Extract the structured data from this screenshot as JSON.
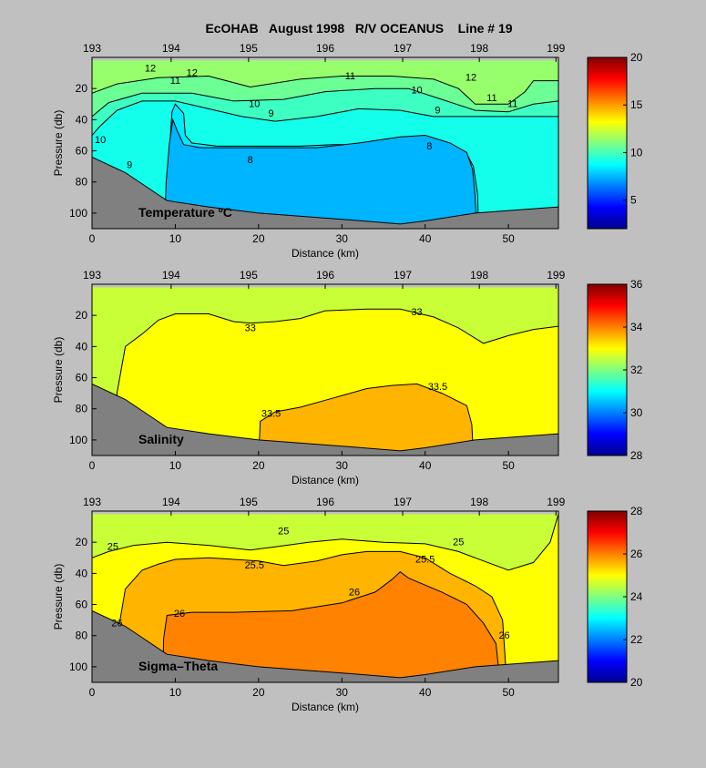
{
  "figure": {
    "title": "EcOHAB   August 1998   R/V OCEANUS    Line # 19"
  },
  "colors": {
    "background": "#c0c0c0",
    "bathymetry": "#808080",
    "contour_line": "#000000"
  },
  "chart_data": [
    {
      "type": "contour",
      "panel_label": "Temperature ºC",
      "xlabel": "Distance (km)",
      "ylabel": "Pressure (db)",
      "xlim": [
        0,
        56
      ],
      "ylim": [
        0,
        110
      ],
      "x_ticks": [
        "0",
        "10",
        "20",
        "30",
        "40",
        "50"
      ],
      "y_ticks": [
        "20",
        "40",
        "60",
        "80",
        "100"
      ],
      "station_ticks": [
        {
          "label": "193",
          "x": 0
        },
        {
          "label": "194",
          "x": 9.5
        },
        {
          "label": "195",
          "x": 18.8
        },
        {
          "label": "196",
          "x": 28
        },
        {
          "label": "197",
          "x": 37.3
        },
        {
          "label": "198",
          "x": 46.5
        },
        {
          "label": "199",
          "x": 55.7
        }
      ],
      "colorbar": {
        "range": [
          2,
          20
        ],
        "ticks": [
          "5",
          "10",
          "15",
          "20"
        ]
      },
      "contour_labels": [
        {
          "text": "12",
          "x": 7,
          "y": 9
        },
        {
          "text": "12",
          "x": 12,
          "y": 12
        },
        {
          "text": "11",
          "x": 10,
          "y": 17
        },
        {
          "text": "11",
          "x": 31,
          "y": 14
        },
        {
          "text": "10",
          "x": 19.5,
          "y": 32
        },
        {
          "text": "9",
          "x": 21.5,
          "y": 38
        },
        {
          "text": "10",
          "x": 39,
          "y": 23
        },
        {
          "text": "9",
          "x": 41.5,
          "y": 36
        },
        {
          "text": "12",
          "x": 45.5,
          "y": 15
        },
        {
          "text": "11",
          "x": 48,
          "y": 28
        },
        {
          "text": "11",
          "x": 50.5,
          "y": 32
        },
        {
          "text": "10",
          "x": 1,
          "y": 55
        },
        {
          "text": "9",
          "x": 4.5,
          "y": 71
        },
        {
          "text": "8",
          "x": 19,
          "y": 68
        },
        {
          "text": "8",
          "x": 40.5,
          "y": 59
        }
      ],
      "regions": [
        {
          "value": 12.5,
          "color": "#96ff6b",
          "boundary": [
            [
              0,
              2
            ],
            [
              56,
              2
            ],
            [
              56,
              110
            ],
            [
              0,
              110
            ]
          ]
        },
        {
          "value": 11.5,
          "color": "#6bff96",
          "boundary": [
            [
              0,
              23
            ],
            [
              3,
              17
            ],
            [
              8,
              13
            ],
            [
              14,
              12
            ],
            [
              19,
              19
            ],
            [
              25,
              14
            ],
            [
              30,
              12
            ],
            [
              36,
              12
            ],
            [
              41,
              14
            ],
            [
              44,
              20
            ],
            [
              46,
              30
            ],
            [
              50,
              30
            ],
            [
              52,
              22
            ],
            [
              53,
              15
            ],
            [
              55.5,
              15
            ],
            [
              56,
              15
            ],
            [
              56,
              110
            ],
            [
              0,
              110
            ]
          ]
        },
        {
          "value": 10.5,
          "color": "#3dffc2",
          "boundary": [
            [
              0,
              38
            ],
            [
              2,
              29
            ],
            [
              6,
              23
            ],
            [
              12,
              23
            ],
            [
              17,
              28
            ],
            [
              23,
              27
            ],
            [
              28,
              22
            ],
            [
              34,
              20
            ],
            [
              38,
              20
            ],
            [
              42,
              27
            ],
            [
              46,
              34
            ],
            [
              50,
              35
            ],
            [
              53,
              30
            ],
            [
              56,
              28
            ],
            [
              56,
              110
            ],
            [
              0,
              110
            ]
          ]
        },
        {
          "value": 9.5,
          "color": "#14ffeb",
          "boundary": [
            [
              0,
              50
            ],
            [
              1,
              44
            ],
            [
              3,
              34
            ],
            [
              6,
              28
            ],
            [
              10,
              28
            ],
            [
              14,
              33
            ],
            [
              18,
              38
            ],
            [
              22,
              41
            ],
            [
              27,
              38
            ],
            [
              32,
              33
            ],
            [
              37,
              34
            ],
            [
              41,
              38
            ],
            [
              45,
              38
            ],
            [
              50,
              38
            ],
            [
              56,
              38
            ],
            [
              56,
              110
            ],
            [
              0,
              110
            ]
          ]
        },
        {
          "value": 8.5,
          "color": "#00ebff",
          "boundary": [
            [
              0,
              110
            ],
            [
              9,
              110
            ],
            [
              9.3,
              60
            ],
            [
              9.6,
              35
            ],
            [
              10,
              30
            ],
            [
              11,
              36
            ],
            [
              11.2,
              50
            ],
            [
              12,
              55
            ],
            [
              15,
              57
            ],
            [
              20,
              57
            ],
            [
              25,
              57
            ],
            [
              29,
              56
            ],
            [
              33,
              56
            ],
            [
              37,
              55
            ],
            [
              40,
              53
            ],
            [
              43,
              57
            ],
            [
              45,
              62
            ],
            [
              45.8,
              70
            ],
            [
              46.3,
              88
            ],
            [
              46.4,
              110
            ],
            [
              56,
              110
            ],
            [
              56,
              110
            ],
            [
              0,
              110
            ]
          ]
        },
        {
          "value": 7.5,
          "color": "#00b5ff",
          "boundary": [
            [
              8.7,
              110
            ],
            [
              8.9,
              80
            ],
            [
              9.3,
              55
            ],
            [
              9.7,
              40
            ],
            [
              10.3,
              48
            ],
            [
              11,
              56
            ],
            [
              13,
              58
            ],
            [
              20,
              58
            ],
            [
              27,
              58
            ],
            [
              32,
              55
            ],
            [
              37,
              51
            ],
            [
              40,
              50
            ],
            [
              43,
              55
            ],
            [
              45,
              61
            ],
            [
              45.7,
              72
            ],
            [
              46,
              90
            ],
            [
              46.2,
              110
            ]
          ]
        }
      ]
    },
    {
      "type": "contour",
      "panel_label": "Salinity",
      "xlabel": "Distance (km)",
      "ylabel": "Pressure (db)",
      "xlim": [
        0,
        56
      ],
      "ylim": [
        0,
        110
      ],
      "x_ticks": [
        "0",
        "10",
        "20",
        "30",
        "40",
        "50"
      ],
      "y_ticks": [
        "20",
        "40",
        "60",
        "80",
        "100"
      ],
      "station_ticks": [
        {
          "label": "193",
          "x": 0
        },
        {
          "label": "194",
          "x": 9.5
        },
        {
          "label": "195",
          "x": 18.8
        },
        {
          "label": "196",
          "x": 28
        },
        {
          "label": "197",
          "x": 37.3
        },
        {
          "label": "198",
          "x": 46.5
        },
        {
          "label": "199",
          "x": 55.7
        }
      ],
      "colorbar": {
        "range": [
          28,
          36
        ],
        "ticks": [
          "28",
          "30",
          "32",
          "34",
          "36"
        ]
      },
      "contour_labels": [
        {
          "text": "33",
          "x": 19,
          "y": 30
        },
        {
          "text": "33",
          "x": 39,
          "y": 20
        },
        {
          "text": "33.5",
          "x": 21.5,
          "y": 85
        },
        {
          "text": "33.5",
          "x": 41.5,
          "y": 68
        }
      ],
      "regions": [
        {
          "value": 32.5,
          "color": "#c8ff37",
          "boundary": [
            [
              0,
              2
            ],
            [
              56,
              2
            ],
            [
              56,
              110
            ],
            [
              0,
              110
            ]
          ]
        },
        {
          "value": 33.2,
          "color": "#ffff00",
          "boundary": [
            [
              2.5,
              110
            ],
            [
              3,
              70
            ],
            [
              4,
              40
            ],
            [
              6,
              32
            ],
            [
              8,
              23
            ],
            [
              10,
              19
            ],
            [
              14,
              19
            ],
            [
              17,
              24
            ],
            [
              19,
              25
            ],
            [
              22,
              24
            ],
            [
              25,
              22
            ],
            [
              28,
              17
            ],
            [
              33,
              16
            ],
            [
              37,
              16
            ],
            [
              41,
              21
            ],
            [
              44,
              28
            ],
            [
              47,
              38
            ],
            [
              50,
              33
            ],
            [
              53,
              29
            ],
            [
              56,
              27
            ],
            [
              56,
              110
            ]
          ]
        },
        {
          "value": 33.7,
          "color": "#ffb400",
          "boundary": [
            [
              20,
              110
            ],
            [
              20.2,
              88
            ],
            [
              22,
              82
            ],
            [
              25,
              79
            ],
            [
              29,
              73
            ],
            [
              33,
              67
            ],
            [
              36,
              65
            ],
            [
              39,
              64
            ],
            [
              42,
              70
            ],
            [
              45,
              78
            ],
            [
              45.6,
              90
            ],
            [
              45.8,
              110
            ]
          ]
        }
      ]
    },
    {
      "type": "contour",
      "panel_label": "Sigma–Theta",
      "xlabel": "Distance (km)",
      "ylabel": "Pressure (db)",
      "xlim": [
        0,
        56
      ],
      "ylim": [
        0,
        110
      ],
      "x_ticks": [
        "0",
        "10",
        "20",
        "30",
        "40",
        "50"
      ],
      "y_ticks": [
        "20",
        "40",
        "60",
        "80",
        "100"
      ],
      "station_ticks": [
        {
          "label": "193",
          "x": 0
        },
        {
          "label": "194",
          "x": 9.5
        },
        {
          "label": "195",
          "x": 18.8
        },
        {
          "label": "196",
          "x": 28
        },
        {
          "label": "197",
          "x": 37.3
        },
        {
          "label": "198",
          "x": 46.5
        },
        {
          "label": "199",
          "x": 55.7
        }
      ],
      "colorbar": {
        "range": [
          20,
          28
        ],
        "ticks": [
          "20",
          "22",
          "24",
          "26",
          "28"
        ]
      },
      "contour_labels": [
        {
          "text": "25",
          "x": 2.5,
          "y": 25
        },
        {
          "text": "25",
          "x": 23,
          "y": 15
        },
        {
          "text": "25",
          "x": 44,
          "y": 22
        },
        {
          "text": "25.5",
          "x": 19.5,
          "y": 37
        },
        {
          "text": "25.5",
          "x": 40,
          "y": 33
        },
        {
          "text": "26",
          "x": 3,
          "y": 74
        },
        {
          "text": "26",
          "x": 10.5,
          "y": 68
        },
        {
          "text": "26",
          "x": 31.5,
          "y": 54
        },
        {
          "text": "26",
          "x": 49.5,
          "y": 82
        }
      ],
      "regions": [
        {
          "value": 24.8,
          "color": "#c8ff37",
          "boundary": [
            [
              0,
              2
            ],
            [
              56,
              2
            ],
            [
              56,
              110
            ],
            [
              0,
              110
            ]
          ]
        },
        {
          "value": 25.2,
          "color": "#ffff00",
          "boundary": [
            [
              0,
              110
            ],
            [
              0,
              30
            ],
            [
              2,
              26
            ],
            [
              5,
              22
            ],
            [
              9,
              20
            ],
            [
              14,
              22
            ],
            [
              19,
              25
            ],
            [
              22,
              23
            ],
            [
              26,
              20
            ],
            [
              30,
              18
            ],
            [
              35,
              20
            ],
            [
              40,
              21
            ],
            [
              44,
              26
            ],
            [
              47,
              32
            ],
            [
              50,
              38
            ],
            [
              53,
              33
            ],
            [
              55,
              20
            ],
            [
              56,
              2
            ],
            [
              56,
              110
            ]
          ]
        },
        {
          "value": 25.7,
          "color": "#ffb400",
          "boundary": [
            [
              3,
              110
            ],
            [
              3.2,
              75
            ],
            [
              4,
              50
            ],
            [
              6,
              38
            ],
            [
              8,
              34
            ],
            [
              10,
              31
            ],
            [
              14,
              30
            ],
            [
              20,
              32
            ],
            [
              23,
              35
            ],
            [
              27,
              32
            ],
            [
              30,
              28
            ],
            [
              33,
              26
            ],
            [
              37,
              26
            ],
            [
              40,
              30
            ],
            [
              43,
              40
            ],
            [
              46,
              48
            ],
            [
              48,
              55
            ],
            [
              49.3,
              70
            ],
            [
              49.8,
              110
            ]
          ]
        },
        {
          "value": 26.2,
          "color": "#ff8200",
          "boundary": [
            [
              8.5,
              110
            ],
            [
              8.6,
              82
            ],
            [
              9,
              67
            ],
            [
              12,
              65
            ],
            [
              17,
              65
            ],
            [
              24,
              64
            ],
            [
              30,
              59
            ],
            [
              34,
              52
            ],
            [
              36,
              44
            ],
            [
              37,
              39
            ],
            [
              38,
              43
            ],
            [
              42,
              52
            ],
            [
              45,
              60
            ],
            [
              47,
              72
            ],
            [
              48.5,
              85
            ],
            [
              49,
              110
            ]
          ]
        }
      ]
    }
  ]
}
